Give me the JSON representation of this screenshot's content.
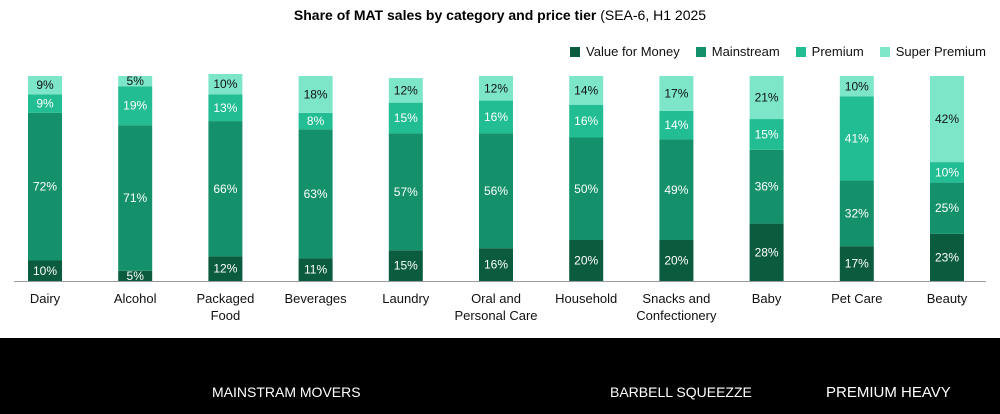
{
  "chart_data": {
    "type": "bar",
    "stacked": true,
    "title_bold": "Share of MAT sales by category and price tier",
    "title_rest": " (SEA-6, H1 2025",
    "categories": [
      [
        "Dairy"
      ],
      [
        "Alcohol"
      ],
      [
        "Packaged",
        "Food"
      ],
      [
        "Beverages"
      ],
      [
        "Laundry"
      ],
      [
        "Oral and",
        "Personal Care"
      ],
      [
        "Household"
      ],
      [
        "Snacks and",
        "Confectionery"
      ],
      [
        "Baby"
      ],
      [
        "Pet Care"
      ],
      [
        "Beauty"
      ]
    ],
    "series": [
      {
        "name": "Value for Money",
        "color": "#0b5c3f",
        "label_color": "#ffffff",
        "values": [
          10,
          5,
          12,
          11,
          15,
          16,
          20,
          20,
          28,
          17,
          23
        ]
      },
      {
        "name": "Mainstream",
        "color": "#14916a",
        "label_color": "#ffffff",
        "values": [
          72,
          71,
          66,
          63,
          57,
          56,
          50,
          49,
          36,
          32,
          25
        ]
      },
      {
        "name": "Premium",
        "color": "#22bd92",
        "label_color": "#ffffff",
        "values": [
          9,
          19,
          13,
          8,
          15,
          16,
          16,
          14,
          15,
          41,
          10
        ]
      },
      {
        "name": "Super Premium",
        "color": "#7de6c9",
        "label_color": "#111111",
        "values": [
          9,
          5,
          10,
          18,
          12,
          12,
          14,
          17,
          21,
          10,
          42
        ]
      }
    ],
    "ylim": [
      0,
      100
    ],
    "legend_position": "top-right",
    "groups": [
      "MAINSTRAM MOVERS",
      "BARBELL SQUEEZZE",
      "PREMIUM HEAVY"
    ]
  }
}
